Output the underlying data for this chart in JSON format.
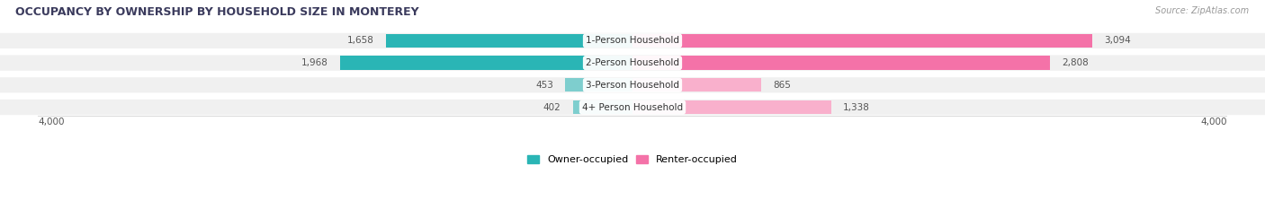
{
  "title": "OCCUPANCY BY OWNERSHIP BY HOUSEHOLD SIZE IN MONTEREY",
  "source": "Source: ZipAtlas.com",
  "categories": [
    "1-Person Household",
    "2-Person Household",
    "3-Person Household",
    "4+ Person Household"
  ],
  "owner_values": [
    1658,
    1968,
    453,
    402
  ],
  "renter_values": [
    3094,
    2808,
    865,
    1338
  ],
  "max_value": 4000,
  "owner_color_row12": "#2ab5b5",
  "owner_color_row34": "#7ecece",
  "renter_color_row12": "#f472a8",
  "renter_color_row34": "#f9b0cc",
  "row_bg_color": "#f0f0f0",
  "label_color": "#555555",
  "title_color": "#3a3a5c",
  "legend_owner": "Owner-occupied",
  "legend_renter": "Renter-occupied",
  "background_color": "#ffffff",
  "separator_color": "#d8d8d8"
}
